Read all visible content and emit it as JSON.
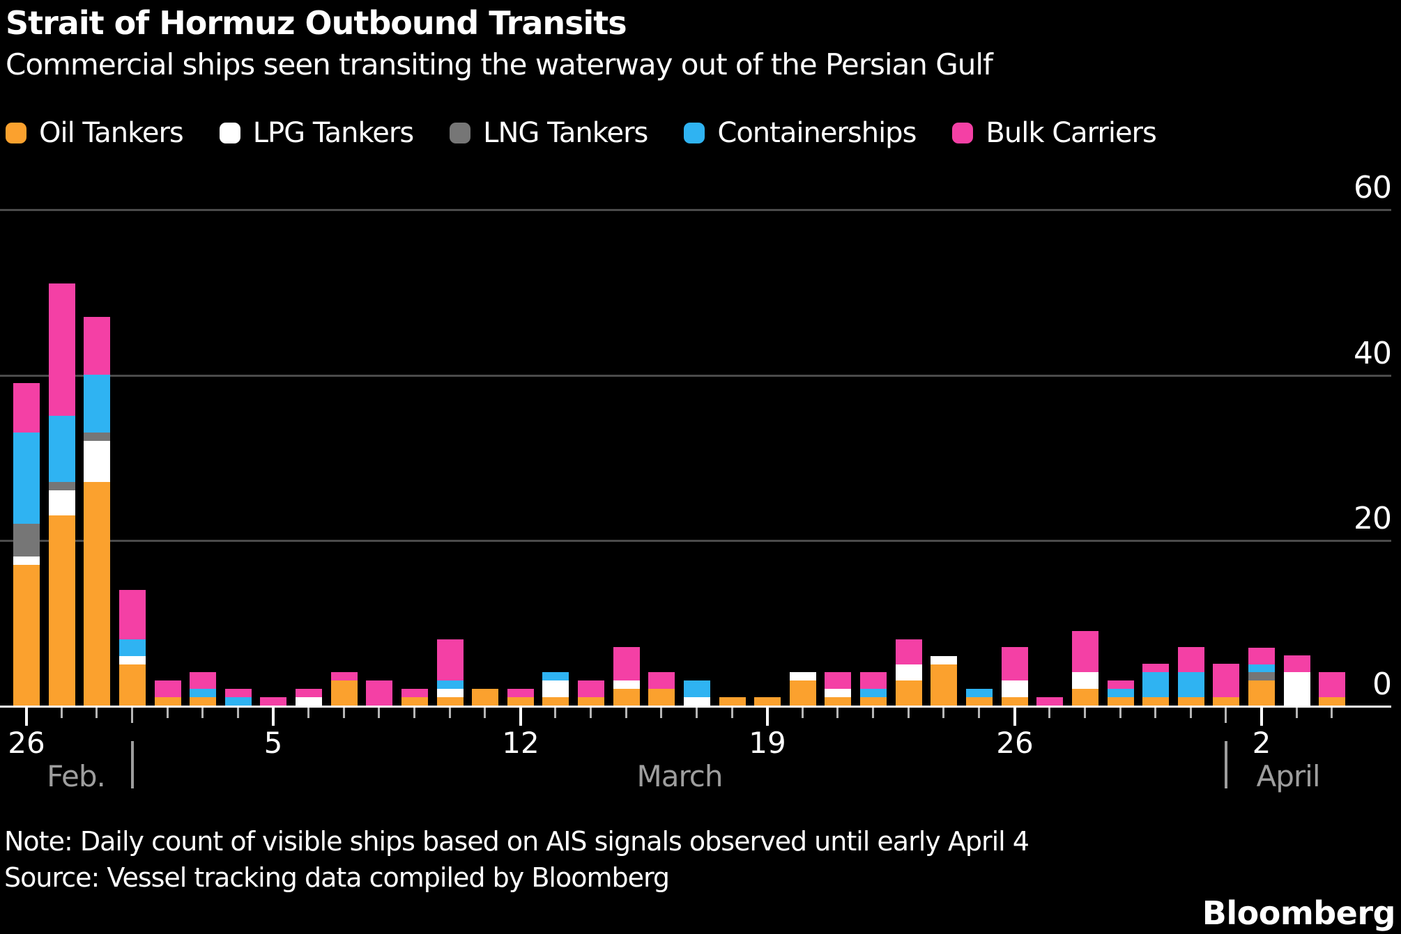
{
  "header": {
    "title": "Strait of Hormuz Outbound Transits",
    "subtitle": "Commercial ships seen transiting the waterway out of the Persian Gulf"
  },
  "legend": {
    "items": [
      {
        "label": "Oil Tankers",
        "color": "#FBA12E"
      },
      {
        "label": "LPG Tankers",
        "color": "#FFFFFF"
      },
      {
        "label": "LNG Tankers",
        "color": "#767676"
      },
      {
        "label": "Containerships",
        "color": "#2FB3F2"
      },
      {
        "label": "Bulk Carriers",
        "color": "#F440A5"
      }
    ]
  },
  "chart_data": {
    "type": "bar",
    "stacked": true,
    "title": "Strait of Hormuz Outbound Transits",
    "xlabel": "",
    "ylabel": "",
    "ylim": [
      0,
      60
    ],
    "yticks": [
      "0",
      "20",
      "40",
      "60"
    ],
    "grid": "horizontal",
    "legend_position": "top",
    "categories": [
      "Feb 26",
      "Feb 27",
      "Feb 28",
      "Mar 1",
      "Mar 2",
      "Mar 3",
      "Mar 4",
      "Mar 5",
      "Mar 6",
      "Mar 7",
      "Mar 8",
      "Mar 9",
      "Mar 10",
      "Mar 11",
      "Mar 12",
      "Mar 13",
      "Mar 14",
      "Mar 15",
      "Mar 16",
      "Mar 17",
      "Mar 18",
      "Mar 19",
      "Mar 20",
      "Mar 21",
      "Mar 22",
      "Mar 23",
      "Mar 24",
      "Mar 25",
      "Mar 26",
      "Mar 27",
      "Mar 28",
      "Mar 29",
      "Mar 30",
      "Mar 31",
      "Apr 1",
      "Apr 2",
      "Apr 3",
      "Apr 4"
    ],
    "series": [
      {
        "name": "Oil Tankers",
        "color": "#FBA12E",
        "values": [
          17,
          23,
          27,
          5,
          1,
          1,
          0,
          0,
          0,
          3,
          0,
          1,
          1,
          2,
          1,
          1,
          1,
          2,
          2,
          0,
          1,
          1,
          3,
          1,
          1,
          3,
          5,
          1,
          1,
          0,
          2,
          1,
          1,
          1,
          1,
          3,
          0,
          1
        ]
      },
      {
        "name": "LPG Tankers",
        "color": "#FFFFFF",
        "values": [
          1,
          3,
          5,
          1,
          0,
          0,
          0,
          0,
          1,
          0,
          0,
          0,
          1,
          0,
          0,
          2,
          0,
          1,
          0,
          1,
          0,
          0,
          1,
          1,
          0,
          2,
          1,
          0,
          2,
          0,
          2,
          0,
          0,
          0,
          0,
          0,
          4,
          0
        ]
      },
      {
        "name": "LNG Tankers",
        "color": "#767676",
        "values": [
          4,
          1,
          1,
          0,
          0,
          0,
          0,
          0,
          0,
          0,
          0,
          0,
          0,
          0,
          0,
          0,
          0,
          0,
          0,
          0,
          0,
          0,
          0,
          0,
          0,
          0,
          0,
          0,
          0,
          0,
          0,
          0,
          0,
          0,
          0,
          1,
          0,
          0
        ]
      },
      {
        "name": "Containerships",
        "color": "#2FB3F2",
        "values": [
          11,
          8,
          7,
          2,
          0,
          1,
          1,
          0,
          0,
          0,
          0,
          0,
          1,
          0,
          0,
          1,
          0,
          0,
          0,
          2,
          0,
          0,
          0,
          0,
          1,
          0,
          0,
          1,
          0,
          0,
          0,
          1,
          3,
          3,
          0,
          1,
          0,
          0
        ]
      },
      {
        "name": "Bulk Carriers",
        "color": "#F440A5",
        "values": [
          6,
          16,
          7,
          6,
          2,
          2,
          1,
          1,
          1,
          1,
          3,
          1,
          5,
          0,
          1,
          0,
          2,
          4,
          2,
          0,
          0,
          0,
          0,
          2,
          2,
          3,
          0,
          0,
          4,
          1,
          5,
          1,
          1,
          3,
          4,
          2,
          2,
          3
        ]
      }
    ],
    "x_major_ticks": [
      {
        "index": 0,
        "label": "26"
      },
      {
        "index": 7,
        "label": "5"
      },
      {
        "index": 14,
        "label": "12"
      },
      {
        "index": 21,
        "label": "19"
      },
      {
        "index": 28,
        "label": "26"
      },
      {
        "index": 35,
        "label": "2"
      }
    ],
    "month_labels": [
      {
        "text": "Feb.",
        "center_index": 1.4
      },
      {
        "text": "March",
        "center_index": 18.5
      },
      {
        "text": "April",
        "center_index": 35.75
      }
    ],
    "month_separator_indices": [
      3,
      34
    ],
    "month_separator_glyph": "|"
  },
  "footer": {
    "note": "Note: Daily count of visible ships based on AIS signals observed until early April 4",
    "source": "Source: Vessel tracking data compiled by Bloomberg",
    "brand": "Bloomberg"
  }
}
